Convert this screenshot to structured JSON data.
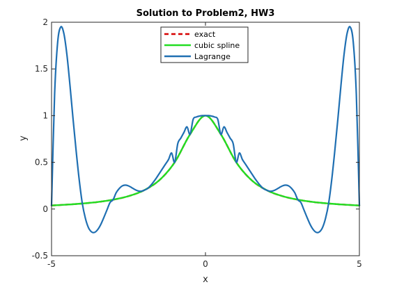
{
  "chart_data": {
    "type": "line",
    "title": "Solution to Problem2, HW3",
    "xlabel": "x",
    "ylabel": "y",
    "xlim": [
      -5,
      5
    ],
    "ylim": [
      -0.5,
      2
    ],
    "xticks": [
      -5,
      0,
      5
    ],
    "xtick_labels": [
      "-5",
      "0",
      "5"
    ],
    "yticks": [
      -0.5,
      0,
      0.5,
      1,
      1.5,
      2
    ],
    "ytick_labels": [
      "-0.5",
      "0",
      "0.5",
      "1",
      "1.5",
      "2"
    ],
    "grid": false,
    "legend_position": "top-center",
    "series": [
      {
        "name": "exact",
        "color": "#d60000",
        "style": "dashed",
        "x": [
          -5,
          -4.5,
          -4,
          -3.5,
          -3,
          -2.5,
          -2,
          -1.5,
          -1,
          -0.5,
          0,
          0.5,
          1,
          1.5,
          2,
          2.5,
          3,
          3.5,
          4,
          4.5,
          5
        ],
        "y": [
          0.038,
          0.047,
          0.059,
          0.075,
          0.1,
          0.138,
          0.2,
          0.308,
          0.5,
          0.8,
          1.0,
          0.8,
          0.5,
          0.308,
          0.2,
          0.138,
          0.1,
          0.075,
          0.059,
          0.047,
          0.038
        ]
      },
      {
        "name": "cubic spline",
        "color": "#22dd22",
        "style": "solid",
        "x": [
          -5,
          -4.5,
          -4,
          -3.5,
          -3,
          -2.5,
          -2,
          -1.5,
          -1,
          -0.5,
          0,
          0.5,
          1,
          1.5,
          2,
          2.5,
          3,
          3.5,
          4,
          4.5,
          5
        ],
        "y": [
          0.038,
          0.047,
          0.059,
          0.075,
          0.1,
          0.138,
          0.2,
          0.308,
          0.5,
          0.8,
          1.0,
          0.8,
          0.5,
          0.308,
          0.2,
          0.138,
          0.1,
          0.075,
          0.059,
          0.047,
          0.038
        ]
      },
      {
        "name": "Lagrange",
        "color": "#1f6fb2",
        "style": "solid",
        "x": [
          -5,
          -4.9,
          -4.8,
          -4.7,
          -4.6,
          -4.5,
          -4.4,
          -4.3,
          -4.2,
          -4.1,
          -4,
          -3.9,
          -3.8,
          -3.7,
          -3.6,
          -3.5,
          -3.4,
          -3.3,
          -3.2,
          -3.1,
          -3,
          -2.9,
          -2.8,
          -2.7,
          -2.6,
          -2.5,
          -2.4,
          -2.3,
          -2.2,
          -2.1,
          -2,
          -1.9,
          -1.8,
          -1.7,
          -1.6,
          -1.5,
          -1.4,
          -1.3,
          -1.2,
          -1.1,
          -1,
          -0.9,
          -0.8,
          -0.7,
          -0.6,
          -0.5,
          -0.4,
          -0.3,
          -0.2,
          -0.1,
          0,
          0.1,
          0.2,
          0.3,
          0.4,
          0.5,
          0.6,
          0.7,
          0.8,
          0.9,
          1,
          1.1,
          1.2,
          1.3,
          1.4,
          1.5,
          1.6,
          1.7,
          1.8,
          1.9,
          2,
          2.1,
          2.2,
          2.3,
          2.4,
          2.5,
          2.6,
          2.7,
          2.8,
          2.9,
          3,
          3.1,
          3.2,
          3.3,
          3.4,
          3.5,
          3.6,
          3.7,
          3.8,
          3.9,
          4,
          4.1,
          4.2,
          4.3,
          4.4,
          4.5,
          4.6,
          4.7,
          4.8,
          4.9,
          5
        ],
        "y": [
          0.038,
          1.23,
          1.79,
          1.95,
          1.88,
          1.65,
          1.32,
          0.96,
          0.62,
          0.31,
          0.059,
          -0.1,
          -0.2,
          -0.245,
          -0.25,
          -0.22,
          -0.165,
          -0.09,
          -0.01,
          0.07,
          0.1,
          0.175,
          0.22,
          0.248,
          0.256,
          0.248,
          0.23,
          0.21,
          0.195,
          0.19,
          0.2,
          0.215,
          0.245,
          0.285,
          0.33,
          0.38,
          0.43,
          0.48,
          0.53,
          0.6,
          0.5,
          0.7,
          0.76,
          0.82,
          0.88,
          0.8,
          0.96,
          0.985,
          0.995,
          1.0,
          1.0,
          1.0,
          0.995,
          0.985,
          0.96,
          0.8,
          0.88,
          0.82,
          0.76,
          0.7,
          0.5,
          0.6,
          0.53,
          0.48,
          0.43,
          0.38,
          0.33,
          0.285,
          0.245,
          0.215,
          0.2,
          0.19,
          0.195,
          0.21,
          0.23,
          0.248,
          0.256,
          0.248,
          0.22,
          0.175,
          0.1,
          0.07,
          -0.01,
          -0.09,
          -0.165,
          -0.22,
          -0.25,
          -0.245,
          -0.2,
          -0.1,
          0.059,
          0.31,
          0.62,
          0.96,
          1.32,
          1.65,
          1.88,
          1.95,
          1.79,
          1.23,
          0.038
        ]
      }
    ]
  }
}
